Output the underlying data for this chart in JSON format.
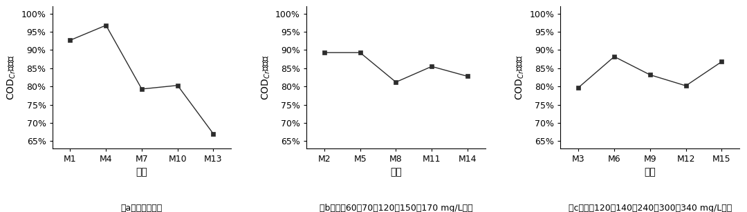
{
  "subplots": [
    {
      "x_labels": [
        "M1",
        "M4",
        "M7",
        "M10",
        "M13"
      ],
      "y_values": [
        0.927,
        0.968,
        0.793,
        0.803,
        0.67
      ],
      "caption": "（a）未投加碳源"
    },
    {
      "x_labels": [
        "M2",
        "M5",
        "M8",
        "M11",
        "M14"
      ],
      "y_values": [
        0.893,
        0.893,
        0.812,
        0.855,
        0.828
      ],
      "caption": "（b）外投60、70、120、150、170 mg/L碳源"
    },
    {
      "x_labels": [
        "M3",
        "M6",
        "M9",
        "M12",
        "M15"
      ],
      "y_values": [
        0.797,
        0.882,
        0.832,
        0.802,
        0.868
      ],
      "caption": "（c）外投120、140、240、300、340 mg/L碳源"
    }
  ],
  "ylim": [
    0.63,
    1.02
  ],
  "yticks": [
    0.65,
    0.7,
    0.75,
    0.8,
    0.85,
    0.9,
    0.95,
    1.0
  ],
  "xlabel": "编号",
  "line_color": "#2c2c2c",
  "marker": "s",
  "marker_size": 4,
  "background_color": "#ffffff",
  "caption_fontsize": 9,
  "axis_label_fontsize": 10,
  "tick_fontsize": 9
}
